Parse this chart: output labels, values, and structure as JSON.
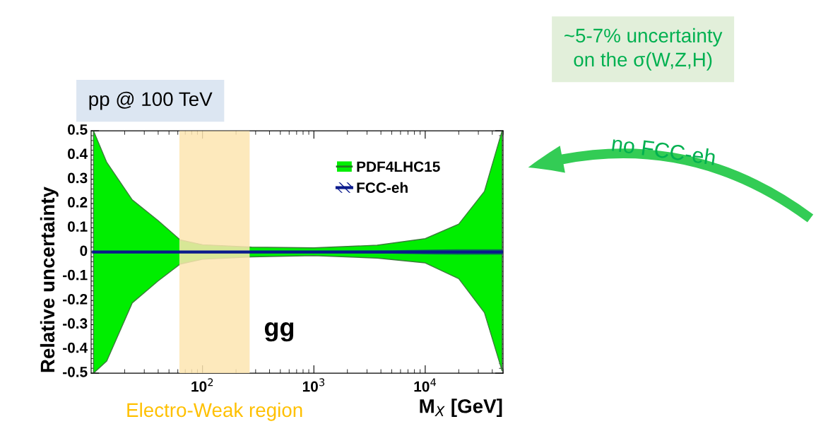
{
  "chart_data": {
    "type": "area",
    "xlabel": "M$_{X}$ [GeV]",
    "ylabel": "Relative uncertainty",
    "log": "x",
    "xlim": [
      10,
      50000
    ],
    "ylim": [
      -0.5,
      0.5
    ],
    "xticks": [
      {
        "value": 100,
        "label": "10$^{2}$"
      },
      {
        "value": 1000,
        "label": "10$^{3}$"
      },
      {
        "value": 10000,
        "label": "10$^{4}$"
      }
    ],
    "yticks": [
      -0.5,
      -0.4,
      -0.3,
      -0.2,
      -0.1,
      0,
      0.1,
      0.2,
      0.3,
      0.4,
      0.5
    ],
    "series": [
      {
        "name": "PDF4LHC15",
        "color": "#00ee00",
        "x": [
          10.5,
          13.8,
          23.4,
          39.8,
          63,
          100,
          275,
          1000,
          3700,
          10000,
          20000,
          34000,
          49000
        ],
        "values": [
          null,
          null,
          null,
          null,
          null,
          null,
          null,
          null,
          null,
          null,
          null,
          null,
          null
        ],
        "upper": [
          0.5,
          0.37,
          0.215,
          0.13,
          0.05,
          0.03,
          0.02,
          0.017,
          0.028,
          0.055,
          0.115,
          0.25,
          0.5
        ],
        "lower": [
          -0.5,
          -0.45,
          -0.21,
          -0.12,
          -0.05,
          -0.03,
          -0.02,
          -0.015,
          -0.025,
          -0.045,
          -0.11,
          -0.25,
          -0.49
        ]
      },
      {
        "name": "FCC-eh",
        "type": "line",
        "color": "#0a1a8c",
        "x": [
          10.5,
          1000,
          5000,
          10000,
          20000,
          49000
        ],
        "values": [
          0,
          0,
          0,
          0,
          0,
          0
        ],
        "upper": [
          0.003,
          0.003,
          0.005,
          0.008,
          0.01,
          0.01
        ],
        "lower": [
          -0.003,
          -0.003,
          -0.005,
          -0.008,
          -0.01,
          -0.01
        ]
      }
    ],
    "bands": [
      {
        "axis": "x",
        "from": 62,
        "to": 265,
        "label": "Electro-Weak region",
        "color": "#fde5b0"
      }
    ],
    "legend": "top right",
    "grid": false,
    "line_style": "solid",
    "marker": "none",
    "annotations": [
      "gg",
      "pp @ 100 TeV",
      "~5-7% uncertainty\non the σ(W,Z,H)",
      "no FCC-eh"
    ]
  }
}
